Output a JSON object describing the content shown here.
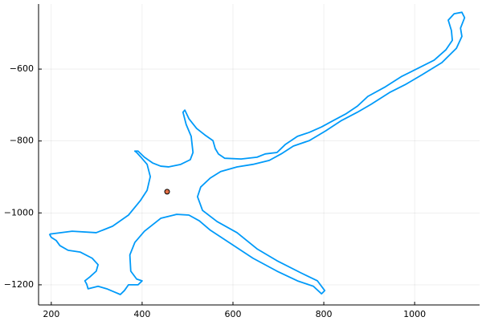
{
  "chart_data": {
    "type": "line",
    "xlim": [
      172,
      1143
    ],
    "ylim": [
      -1256,
      -419
    ],
    "xticks": [
      200,
      400,
      600,
      800,
      1000
    ],
    "yticks": [
      {
        "value": -1200,
        "label": "−1200"
      },
      {
        "value": -1000,
        "label": "−1000"
      },
      {
        "value": -800,
        "label": "−800"
      },
      {
        "value": -600,
        "label": "−600"
      }
    ],
    "grid": true,
    "series": [
      {
        "type": "line",
        "color": "#009af9",
        "x": [
          196,
          246,
          299,
          335,
          370,
          396,
          411,
          418,
          411,
          396,
          388,
          384,
          391,
          405,
          423,
          441,
          458,
          485,
          506,
          512,
          508,
          497,
          490,
          494,
          503,
          520,
          538,
          556,
          561,
          568,
          582,
          618,
          653,
          671,
          697,
          715,
          742,
          768,
          795,
          821,
          848,
          874,
          897,
          936,
          972,
          1007,
          1043,
          1069,
          1083,
          1081,
          1074,
          1087,
          1104,
          1110,
          1101,
          1104,
          1092,
          1060,
          1016,
          981,
          945,
          904,
          874,
          839,
          804,
          768,
          733,
          706,
          680,
          644,
          609,
          573,
          550,
          529,
          522,
          533,
          565,
          609,
          653,
          697,
          750,
          786,
          802,
          795,
          777,
          742,
          697,
          644,
          591,
          550,
          526,
          503,
          476,
          441,
          405,
          384,
          373,
          375,
          388,
          400,
          391,
          370,
          361,
          352,
          343,
          322,
          303,
          281,
          278,
          274,
          285,
          299,
          303,
          290,
          264,
          237,
          219,
          211,
          200,
          196
        ],
        "values": [
          -1059,
          -1051,
          -1055,
          -1037,
          -1006,
          -966,
          -937,
          -899,
          -865,
          -843,
          -832,
          -828,
          -828,
          -845,
          -861,
          -870,
          -872,
          -865,
          -852,
          -832,
          -787,
          -754,
          -720,
          -714,
          -738,
          -765,
          -783,
          -799,
          -821,
          -836,
          -848,
          -850,
          -845,
          -836,
          -832,
          -810,
          -787,
          -776,
          -761,
          -743,
          -725,
          -703,
          -676,
          -649,
          -620,
          -598,
          -575,
          -546,
          -520,
          -493,
          -464,
          -446,
          -442,
          -457,
          -486,
          -509,
          -542,
          -582,
          -616,
          -642,
          -665,
          -698,
          -720,
          -743,
          -772,
          -799,
          -814,
          -836,
          -854,
          -865,
          -872,
          -885,
          -903,
          -928,
          -955,
          -993,
          -1024,
          -1055,
          -1100,
          -1133,
          -1167,
          -1189,
          -1216,
          -1225,
          -1204,
          -1189,
          -1162,
          -1126,
          -1082,
          -1048,
          -1022,
          -1006,
          -1004,
          -1015,
          -1051,
          -1082,
          -1117,
          -1162,
          -1184,
          -1189,
          -1200,
          -1200,
          -1216,
          -1227,
          -1222,
          -1211,
          -1204,
          -1211,
          -1198,
          -1189,
          -1178,
          -1162,
          -1144,
          -1126,
          -1109,
          -1104,
          -1091,
          -1077,
          -1068,
          -1059
        ]
      },
      {
        "type": "scatter",
        "color": "#e26f46",
        "x": [
          455
        ],
        "values": [
          -941
        ]
      }
    ]
  }
}
